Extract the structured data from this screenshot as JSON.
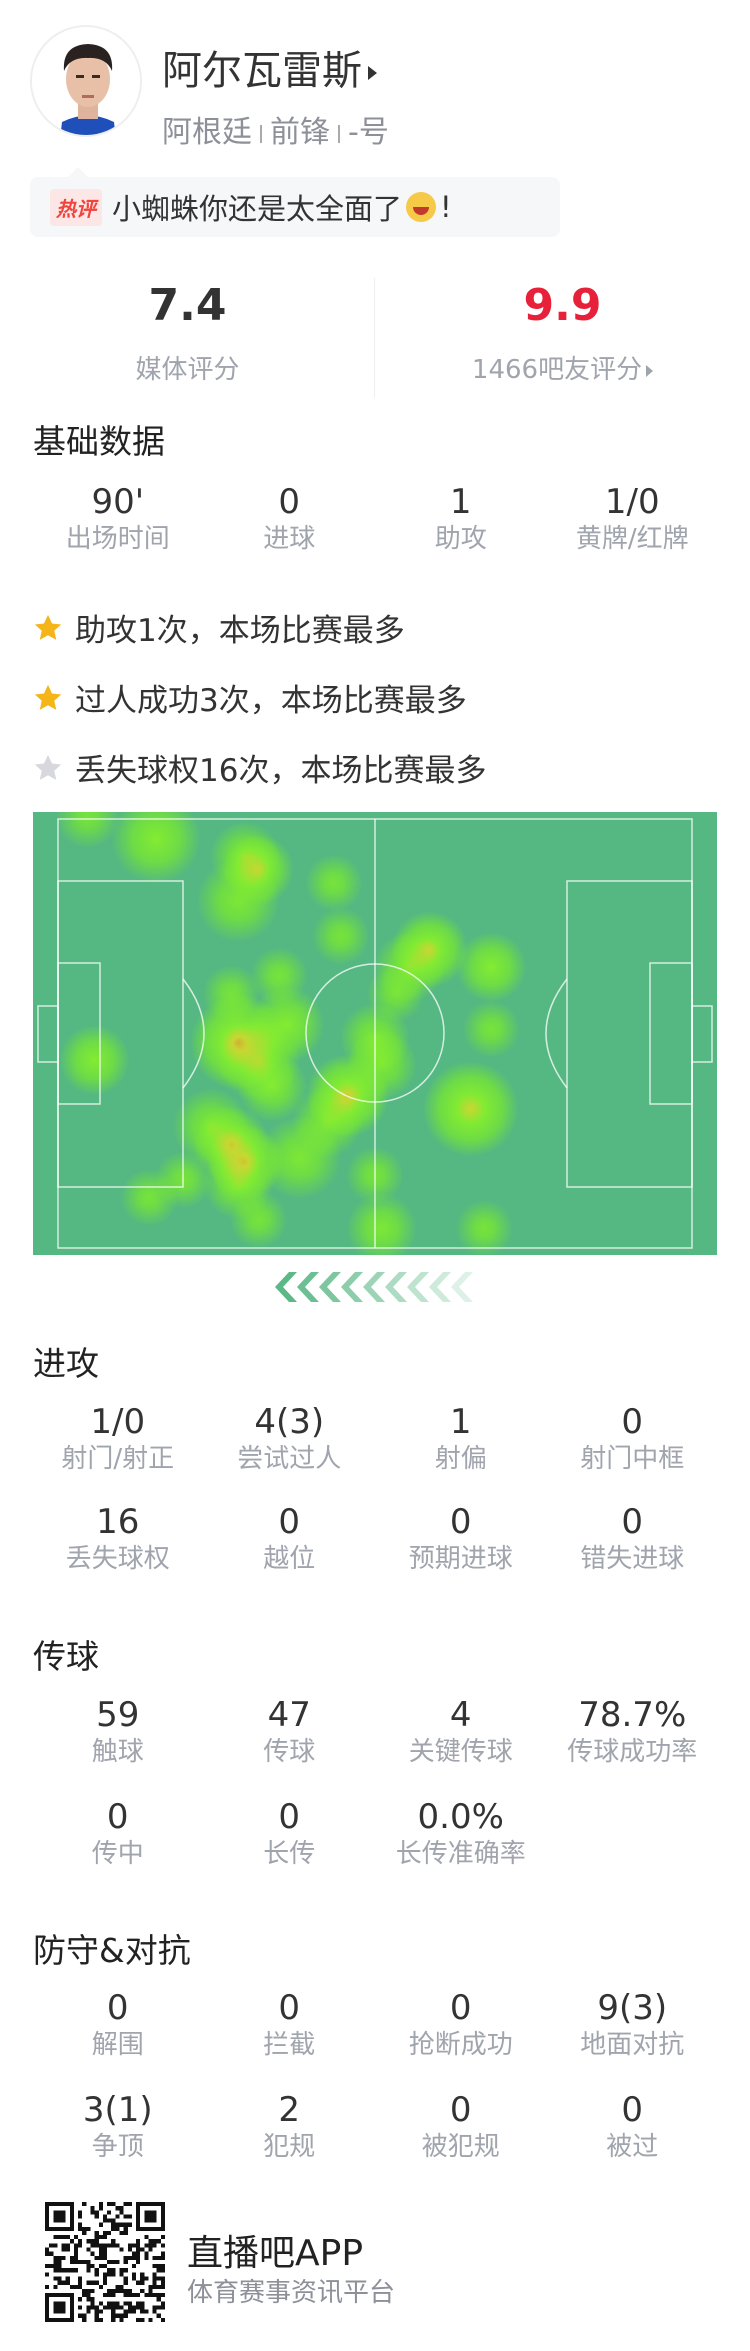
{
  "player": {
    "name": "阿尔瓦雷斯",
    "country": "阿根廷",
    "position": "前锋",
    "number": "-号"
  },
  "comment": {
    "tag": "热评",
    "text": "小蜘蛛你还是太全面了",
    "emoji": "laughing-tears-emoji",
    "suffix": "!"
  },
  "ratings": {
    "media": {
      "value": "7.4",
      "label": "媒体评分"
    },
    "fans": {
      "value": "9.9",
      "label": "1466吧友评分",
      "color": "#e8213a"
    }
  },
  "basic": {
    "title": "基础数据",
    "stats": [
      {
        "value": "90'",
        "label": "出场时间"
      },
      {
        "value": "0",
        "label": "进球"
      },
      {
        "value": "1",
        "label": "助攻"
      },
      {
        "value": "1/0",
        "label": "黄牌/红牌"
      }
    ]
  },
  "highlights": [
    {
      "text": "助攻1次，本场比赛最多",
      "star": "gold",
      "color": "#f5b417"
    },
    {
      "text": "过人成功3次，本场比赛最多",
      "star": "gold",
      "color": "#f5b417"
    },
    {
      "text": "丢失球权16次，本场比赛最多",
      "star": "silver",
      "color": "#d6d8de"
    }
  ],
  "heatmap": {
    "pitch_color": "#55b882",
    "attack_direction": "left"
  },
  "attack": {
    "title": "进攻",
    "stats": [
      {
        "value": "1/0",
        "label": "射门/射正"
      },
      {
        "value": "4(3)",
        "label": "尝试过人"
      },
      {
        "value": "1",
        "label": "射偏"
      },
      {
        "value": "0",
        "label": "射门中框"
      },
      {
        "value": "16",
        "label": "丢失球权"
      },
      {
        "value": "0",
        "label": "越位"
      },
      {
        "value": "0",
        "label": "预期进球"
      },
      {
        "value": "0",
        "label": "错失进球"
      }
    ]
  },
  "passing": {
    "title": "传球",
    "stats": [
      {
        "value": "59",
        "label": "触球"
      },
      {
        "value": "47",
        "label": "传球"
      },
      {
        "value": "4",
        "label": "关键传球"
      },
      {
        "value": "78.7%",
        "label": "传球成功率"
      },
      {
        "value": "0",
        "label": "传中"
      },
      {
        "value": "0",
        "label": "长传"
      },
      {
        "value": "0.0%",
        "label": "长传准确率"
      }
    ]
  },
  "defense": {
    "title": "防守&对抗",
    "stats": [
      {
        "value": "0",
        "label": "解围"
      },
      {
        "value": "0",
        "label": "拦截"
      },
      {
        "value": "0",
        "label": "抢断成功"
      },
      {
        "value": "9(3)",
        "label": "地面对抗"
      },
      {
        "value": "3(1)",
        "label": "争顶"
      },
      {
        "value": "2",
        "label": "犯规"
      },
      {
        "value": "0",
        "label": "被犯规"
      },
      {
        "value": "0",
        "label": "被过"
      }
    ]
  },
  "footer": {
    "app_name": "直播吧APP",
    "tagline": "体育赛事资讯平台"
  }
}
